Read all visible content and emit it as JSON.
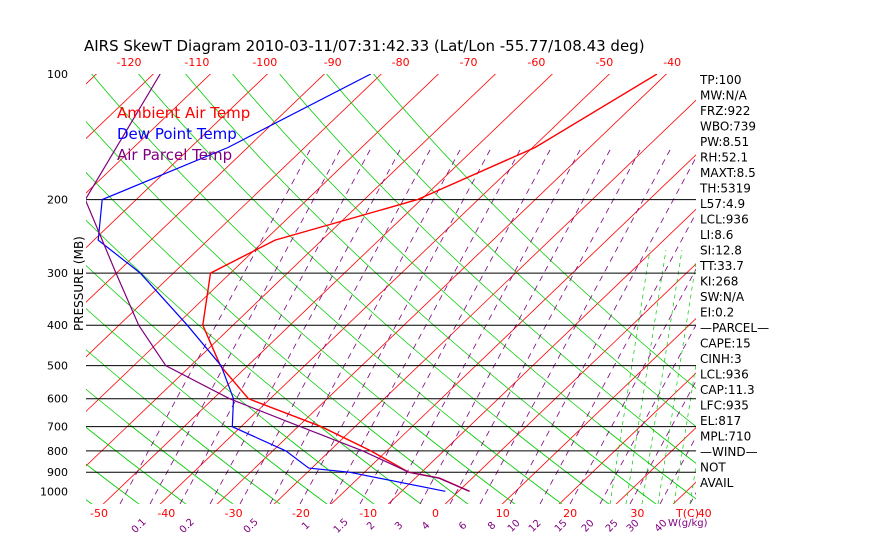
{
  "chart_data": {
    "type": "line",
    "title": "AIRS SkewT Diagram 2010-03-11/07:31:42.33 (Lat/Lon -55.77/108.43 deg)",
    "ylabel": "PRESSURE (MB)",
    "xlabel_right": "T(C)",
    "mixing_label": "W(g/kg)",
    "ylim": [
      1000,
      100
    ],
    "xlim_bottom": [
      -50,
      40
    ],
    "pressure_ticks": [
      {
        "p": 100,
        "label": "100"
      },
      {
        "p": 200,
        "label": "200"
      },
      {
        "p": 300,
        "label": "300"
      },
      {
        "p": 400,
        "label": "400"
      },
      {
        "p": 500,
        "label": "500"
      },
      {
        "p": 600,
        "label": "600"
      },
      {
        "p": 700,
        "label": "700"
      },
      {
        "p": 800,
        "label": "800"
      },
      {
        "p": 900,
        "label": "900"
      },
      {
        "p": 1000,
        "label": "1000"
      }
    ],
    "isobar_lines": [
      200,
      300,
      400,
      500,
      600,
      700,
      800,
      900
    ],
    "bottom_temp_ticks": [
      -50,
      -40,
      -30,
      -20,
      -10,
      0,
      10,
      20,
      30,
      40
    ],
    "top_temp_ticks": [
      -120,
      -110,
      -100,
      -90,
      -80,
      -70,
      -60,
      -50,
      -40
    ],
    "mixing_ratio_ticks": [
      "0.1",
      "0.2",
      "0.5",
      "1",
      "1.5",
      "2",
      "3",
      "4",
      "6",
      "8",
      "10",
      "12",
      "15",
      "20",
      "25",
      "30",
      "40"
    ],
    "legend": [
      {
        "name": "Ambient Air Temp",
        "color": "#ff0000"
      },
      {
        "name": "Dew Point Temp",
        "color": "#0000ff"
      },
      {
        "name": "Air Parcel Temp",
        "color": "#800080"
      }
    ],
    "series": [
      {
        "name": "Ambient Air Temp",
        "color": "#ff0000",
        "points": [
          [
            100,
            -48.4
          ],
          [
            150,
            -52.3
          ],
          [
            200,
            -59.7
          ],
          [
            250,
            -73.0
          ],
          [
            300,
            -76.2
          ],
          [
            400,
            -67.3
          ],
          [
            500,
            -56.9
          ],
          [
            600,
            -46.4
          ],
          [
            700,
            -30.2
          ],
          [
            800,
            -18.2
          ],
          [
            900,
            -8.5
          ],
          [
            930,
            -2.8
          ],
          [
            1000,
            4.2
          ]
        ]
      },
      {
        "name": "Dew Point Temp",
        "color": "#0000ff",
        "points": [
          [
            100,
            -90.8
          ],
          [
            150,
            -97.8
          ],
          [
            200,
            -106.4
          ],
          [
            250,
            -99.2
          ],
          [
            300,
            -86.6
          ],
          [
            400,
            -69.6
          ],
          [
            500,
            -56.8
          ],
          [
            600,
            -48.6
          ],
          [
            700,
            -43.4
          ],
          [
            800,
            -30.8
          ],
          [
            880,
            -24.1
          ],
          [
            900,
            -17.3
          ],
          [
            1000,
            0.6
          ]
        ]
      },
      {
        "name": "Air Parcel Temp",
        "color": "#800080",
        "points": [
          [
            100,
            -122.0
          ],
          [
            200,
            -108.9
          ],
          [
            300,
            -90.2
          ],
          [
            400,
            -76.8
          ],
          [
            500,
            -65.0
          ],
          [
            600,
            -49.2
          ],
          [
            700,
            -33.3
          ],
          [
            800,
            -19.4
          ],
          [
            900,
            -8.5
          ],
          [
            930,
            -2.9
          ],
          [
            1000,
            4.2
          ]
        ]
      }
    ]
  },
  "indices": [
    {
      "label": "TP:100"
    },
    {
      "label": "MW:N/A"
    },
    {
      "label": "FRZ:922"
    },
    {
      "label": "WBO:739"
    },
    {
      "label": "PW:8.51"
    },
    {
      "label": "RH:52.1"
    },
    {
      "label": "MAXT:8.5"
    },
    {
      "label": "TH:5319"
    },
    {
      "label": "L57:4.9"
    },
    {
      "label": "LCL:936"
    },
    {
      "label": "LI:8.6"
    },
    {
      "label": "SI:12.8"
    },
    {
      "label": "TT:33.7"
    },
    {
      "label": "KI:268"
    },
    {
      "label": "SW:N/A"
    },
    {
      "label": "EI:0.2"
    },
    {
      "label": "—PARCEL—"
    },
    {
      "label": "CAPE:15"
    },
    {
      "label": "CINH:3"
    },
    {
      "label": "LCL:936"
    },
    {
      "label": "CAP:11.3"
    },
    {
      "label": "LFC:935"
    },
    {
      "label": "EL:817"
    },
    {
      "label": "MPL:710"
    },
    {
      "label": "—WIND—"
    },
    {
      "label": "NOT"
    },
    {
      "label": "AVAIL"
    }
  ],
  "colors": {
    "dry_adiabat": "#ff0000",
    "moist_adiabat": "#00cc00",
    "mixing_ratio": "#800080",
    "isobar": "#000000",
    "axis_label": "#ff0000",
    "index_text": "#000000"
  }
}
